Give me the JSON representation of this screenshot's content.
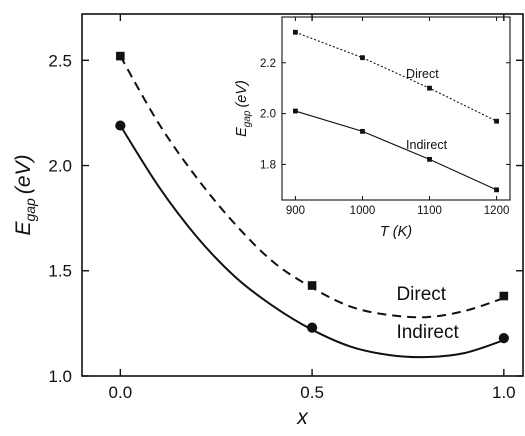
{
  "chart_data": [
    {
      "type": "line",
      "title": "",
      "xlabel": "x",
      "ylabel_main": "E",
      "ylabel_sub": "gap",
      "ylabel_unit": "(eV)",
      "xlim": [
        -0.1,
        1.05
      ],
      "ylim": [
        1.0,
        2.72
      ],
      "xticks": [
        0.0,
        0.5,
        1.0
      ],
      "xtick_labels": [
        "0.0",
        "0.5",
        "1.0"
      ],
      "yticks": [
        1.0,
        1.5,
        2.0,
        2.5
      ],
      "ytick_labels": [
        "1.0",
        "1.5",
        "2.0",
        "2.5"
      ],
      "legend": "none",
      "grid": false,
      "series": [
        {
          "name": "Direct",
          "marker": "square",
          "line_style": "dashed",
          "x": [
            0.0,
            0.5,
            1.0
          ],
          "y": [
            2.52,
            1.43,
            1.38
          ],
          "fit_curve": {
            "x": [
              0.0,
              0.1,
              0.2,
              0.3,
              0.4,
              0.5,
              0.6,
              0.7,
              0.8,
              0.9,
              1.0
            ],
            "y": [
              2.52,
              2.2,
              1.94,
              1.72,
              1.54,
              1.42,
              1.33,
              1.29,
              1.28,
              1.31,
              1.37
            ]
          },
          "label": {
            "text": "Direct",
            "x": 0.72,
            "y": 1.36
          }
        },
        {
          "name": "Indirect",
          "marker": "circle",
          "line_style": "solid",
          "x": [
            0.0,
            0.5,
            1.0
          ],
          "y": [
            2.19,
            1.23,
            1.18
          ],
          "fit_curve": {
            "x": [
              0.0,
              0.1,
              0.2,
              0.3,
              0.4,
              0.5,
              0.6,
              0.7,
              0.8,
              0.9,
              1.0
            ],
            "y": [
              2.19,
              1.9,
              1.66,
              1.47,
              1.33,
              1.22,
              1.14,
              1.1,
              1.09,
              1.11,
              1.17
            ]
          },
          "label": {
            "text": "Indirect",
            "x": 0.72,
            "y": 1.18
          }
        }
      ]
    },
    {
      "type": "line",
      "title": "",
      "xlabel": "T (K)",
      "ylabel_main": "E",
      "ylabel_sub": "gap",
      "ylabel_unit": "(eV)",
      "xlim": [
        880,
        1220
      ],
      "ylim": [
        1.66,
        2.38
      ],
      "xticks": [
        900,
        1000,
        1100,
        1200
      ],
      "xtick_labels": [
        "900",
        "1000",
        "1100",
        "1200"
      ],
      "yticks": [
        1.8,
        2.0,
        2.2
      ],
      "ytick_labels": [
        "1.8",
        "2.0",
        "2.2"
      ],
      "legend": "none",
      "grid": false,
      "series": [
        {
          "name": "Direct",
          "marker": "square",
          "line_style": "dotted",
          "x": [
            900,
            1000,
            1100,
            1200
          ],
          "y": [
            2.32,
            2.22,
            2.1,
            1.97
          ],
          "label": {
            "text": "Direct",
            "x": 1065,
            "y": 2.14
          }
        },
        {
          "name": "Indirect",
          "marker": "square",
          "line_style": "solid",
          "x": [
            900,
            1000,
            1100,
            1200
          ],
          "y": [
            2.01,
            1.93,
            1.82,
            1.7
          ],
          "label": {
            "text": "Indirect",
            "x": 1065,
            "y": 1.86
          }
        }
      ]
    }
  ]
}
